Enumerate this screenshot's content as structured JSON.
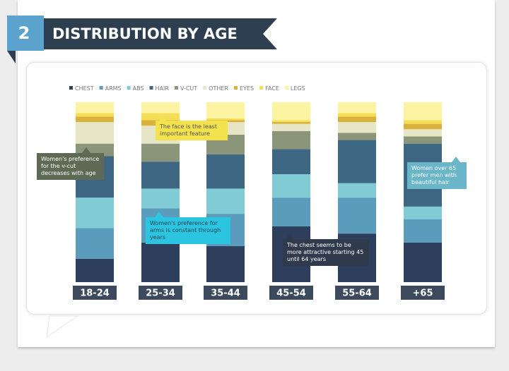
{
  "chart_data": {
    "type": "stacked-bar",
    "section_number": "2",
    "title": "DISTRIBUTION BY AGE",
    "categories": [
      "18-24",
      "25-34",
      "35-44",
      "45-54",
      "55-64",
      "+65"
    ],
    "ylim": [
      0,
      100
    ],
    "series": [
      {
        "name": "CHEST",
        "color": "#2d3f5c",
        "values": [
          13,
          22,
          20,
          31,
          27,
          22
        ]
      },
      {
        "name": "ARMS",
        "color": "#5b9bbb",
        "values": [
          17,
          19,
          18,
          16,
          20,
          13
        ]
      },
      {
        "name": "ABS",
        "color": "#80cbd4",
        "values": [
          17,
          11,
          14,
          13,
          8,
          7
        ]
      },
      {
        "name": "HAIR",
        "color": "#3e6784",
        "values": [
          23,
          15,
          19,
          14,
          24,
          35
        ]
      },
      {
        "name": "V-CUT",
        "color": "#8b957a",
        "values": [
          7,
          10,
          11,
          10,
          4,
          4
        ]
      },
      {
        "name": "OTHER",
        "color": "#e6e5c6",
        "values": [
          12,
          10,
          7,
          4,
          6,
          4
        ]
      },
      {
        "name": "EYES",
        "color": "#d9b13c",
        "values": [
          3,
          3,
          1,
          1,
          3,
          3
        ]
      },
      {
        "name": "FACE",
        "color": "#f3de55",
        "values": [
          2,
          4,
          1,
          1,
          2,
          2
        ]
      },
      {
        "name": "LEGS",
        "color": "#fcf4a0",
        "values": [
          6,
          6,
          9,
          10,
          6,
          10
        ]
      }
    ],
    "annotations": [
      "Women's preference for the v-cut decreases with age",
      "The face is the least important feature",
      "Women's preference for arms is constant through years",
      "The chest seems to be more attractive starting 45 until 64 years",
      "Women over 65 prefer men with beautiful hair"
    ]
  }
}
